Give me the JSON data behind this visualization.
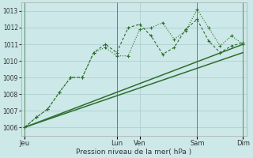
{
  "title": "",
  "xlabel": "Pression niveau de la mer( hPa )",
  "ylim": [
    1005.5,
    1013.5
  ],
  "yticks": [
    1006,
    1007,
    1008,
    1009,
    1010,
    1011,
    1012,
    1013
  ],
  "background_color": "#cce8e8",
  "grid_color": "#aacccc",
  "line_color": "#2d6e2d",
  "xtick_labels": [
    "Jeu",
    "Lun",
    "Ven",
    "Sam",
    "Dim"
  ],
  "xtick_positions": [
    0,
    8,
    10,
    15,
    19
  ],
  "vline_positions": [
    0,
    8,
    15,
    19
  ],
  "series1_x": [
    0,
    1,
    2,
    3,
    4,
    5,
    6,
    7,
    8,
    9,
    10,
    11,
    12,
    13,
    14,
    15,
    16,
    17,
    18,
    19
  ],
  "series1_y": [
    1006.0,
    1006.6,
    1007.1,
    1008.1,
    1009.0,
    1009.0,
    1010.5,
    1010.8,
    1010.3,
    1010.3,
    1011.9,
    1012.0,
    1012.3,
    1011.3,
    1011.8,
    1013.1,
    1012.0,
    1010.9,
    1011.5,
    1011.0
  ],
  "series2_x": [
    0,
    1,
    2,
    3,
    4,
    5,
    6,
    7,
    8,
    9,
    10,
    11,
    12,
    13,
    14,
    15,
    16,
    17,
    18,
    19
  ],
  "series2_y": [
    1006.0,
    1006.6,
    1007.1,
    1008.1,
    1009.0,
    1009.0,
    1010.5,
    1011.0,
    1010.5,
    1012.0,
    1012.2,
    1011.5,
    1010.4,
    1010.8,
    1011.9,
    1012.5,
    1011.2,
    1010.5,
    1010.9,
    1011.1
  ],
  "trend_x": [
    0,
    19
  ],
  "trend_y": [
    1006.0,
    1011.0
  ],
  "trend2_x": [
    0,
    19
  ],
  "trend2_y": [
    1006.0,
    1010.5
  ]
}
